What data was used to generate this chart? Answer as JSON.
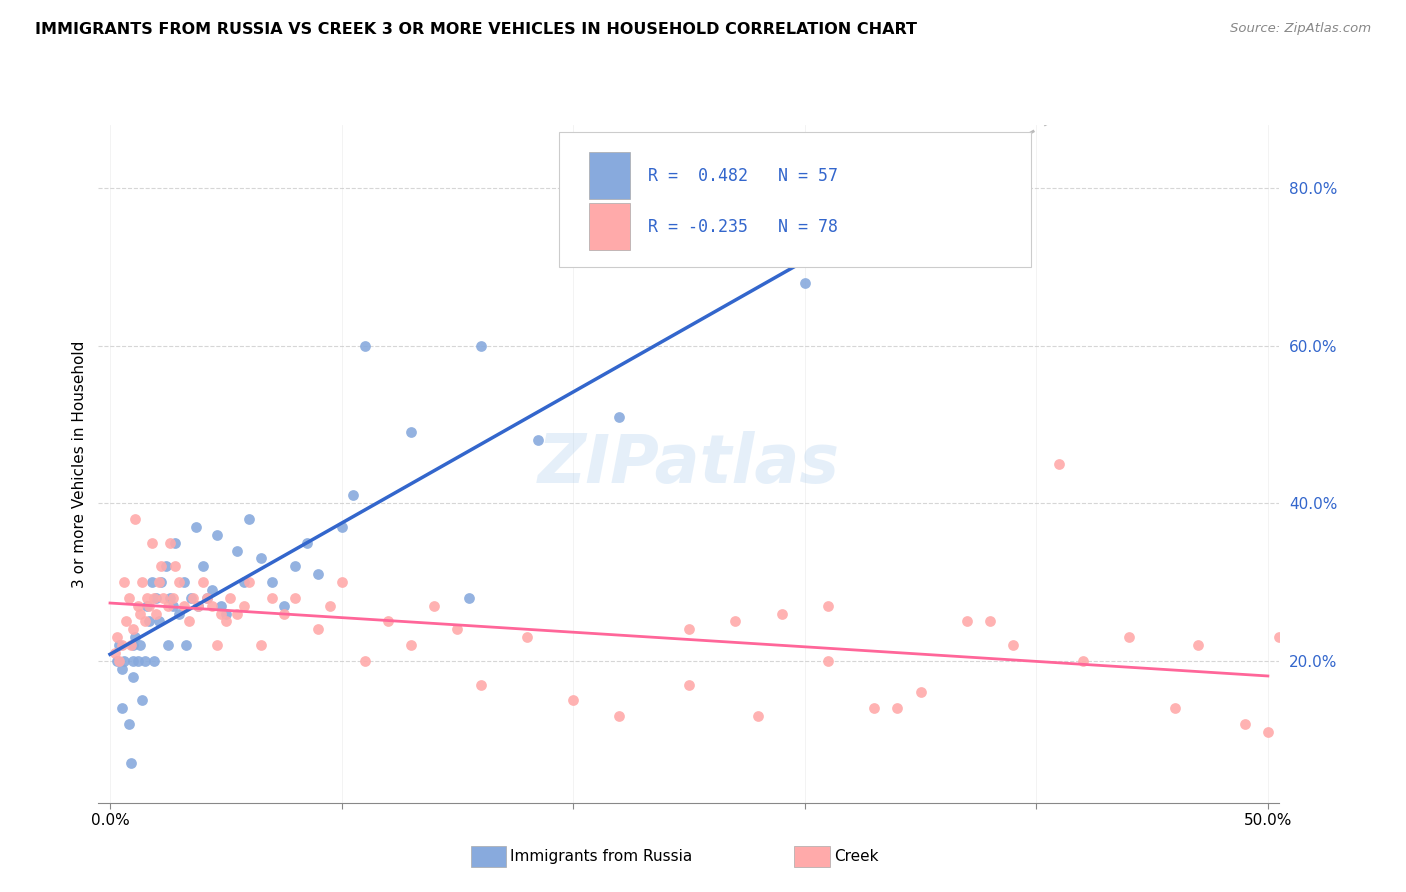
{
  "title": "IMMIGRANTS FROM RUSSIA VS CREEK 3 OR MORE VEHICLES IN HOUSEHOLD CORRELATION CHART",
  "source": "Source: ZipAtlas.com",
  "ylabel": "3 or more Vehicles in Household",
  "yaxis_labels": [
    "20.0%",
    "40.0%",
    "60.0%",
    "80.0%"
  ],
  "yaxis_values": [
    0.2,
    0.4,
    0.6,
    0.8
  ],
  "xlim": [
    -0.005,
    0.505
  ],
  "ylim": [
    0.02,
    0.88
  ],
  "legend1_label": "R =  0.482   N = 57",
  "legend2_label": "R = -0.235   N = 78",
  "color_blue": "#88AADD",
  "color_pink": "#FFAAAA",
  "trend_blue": "#3366CC",
  "trend_pink": "#FF6699",
  "trend_dashed": "#BBBBBB",
  "watermark": "ZIPatlas",
  "blue_dots_x": [
    0.003,
    0.004,
    0.005,
    0.005,
    0.006,
    0.008,
    0.009,
    0.01,
    0.01,
    0.01,
    0.011,
    0.012,
    0.013,
    0.014,
    0.015,
    0.016,
    0.017,
    0.018,
    0.019,
    0.02,
    0.021,
    0.022,
    0.024,
    0.025,
    0.026,
    0.027,
    0.028,
    0.03,
    0.032,
    0.033,
    0.035,
    0.037,
    0.038,
    0.04,
    0.042,
    0.044,
    0.046,
    0.048,
    0.05,
    0.055,
    0.058,
    0.06,
    0.065,
    0.07,
    0.075,
    0.08,
    0.085,
    0.09,
    0.1,
    0.105,
    0.11,
    0.13,
    0.155,
    0.16,
    0.185,
    0.22,
    0.3
  ],
  "blue_dots_y": [
    0.2,
    0.22,
    0.19,
    0.14,
    0.2,
    0.12,
    0.07,
    0.22,
    0.2,
    0.18,
    0.23,
    0.2,
    0.22,
    0.15,
    0.2,
    0.27,
    0.25,
    0.3,
    0.2,
    0.28,
    0.25,
    0.3,
    0.32,
    0.22,
    0.28,
    0.27,
    0.35,
    0.26,
    0.3,
    0.22,
    0.28,
    0.37,
    0.27,
    0.32,
    0.28,
    0.29,
    0.36,
    0.27,
    0.26,
    0.34,
    0.3,
    0.38,
    0.33,
    0.3,
    0.27,
    0.32,
    0.35,
    0.31,
    0.37,
    0.41,
    0.6,
    0.49,
    0.28,
    0.6,
    0.48,
    0.51,
    0.68
  ],
  "pink_dots_x": [
    0.002,
    0.003,
    0.004,
    0.005,
    0.006,
    0.007,
    0.008,
    0.009,
    0.01,
    0.011,
    0.012,
    0.013,
    0.014,
    0.015,
    0.016,
    0.017,
    0.018,
    0.019,
    0.02,
    0.021,
    0.022,
    0.023,
    0.025,
    0.026,
    0.027,
    0.028,
    0.03,
    0.032,
    0.034,
    0.036,
    0.038,
    0.04,
    0.042,
    0.044,
    0.046,
    0.048,
    0.05,
    0.052,
    0.055,
    0.058,
    0.06,
    0.065,
    0.07,
    0.075,
    0.08,
    0.09,
    0.095,
    0.1,
    0.11,
    0.12,
    0.13,
    0.14,
    0.15,
    0.16,
    0.18,
    0.2,
    0.22,
    0.25,
    0.28,
    0.31,
    0.34,
    0.37,
    0.39,
    0.41,
    0.44,
    0.46,
    0.47,
    0.49,
    0.5,
    0.505,
    0.38,
    0.42,
    0.35,
    0.33,
    0.25,
    0.27,
    0.29,
    0.31
  ],
  "pink_dots_y": [
    0.21,
    0.23,
    0.2,
    0.22,
    0.3,
    0.25,
    0.28,
    0.22,
    0.24,
    0.38,
    0.27,
    0.26,
    0.3,
    0.25,
    0.28,
    0.27,
    0.35,
    0.28,
    0.26,
    0.3,
    0.32,
    0.28,
    0.27,
    0.35,
    0.28,
    0.32,
    0.3,
    0.27,
    0.25,
    0.28,
    0.27,
    0.3,
    0.28,
    0.27,
    0.22,
    0.26,
    0.25,
    0.28,
    0.26,
    0.27,
    0.3,
    0.22,
    0.28,
    0.26,
    0.28,
    0.24,
    0.27,
    0.3,
    0.2,
    0.25,
    0.22,
    0.27,
    0.24,
    0.17,
    0.23,
    0.15,
    0.13,
    0.24,
    0.13,
    0.27,
    0.14,
    0.25,
    0.22,
    0.45,
    0.23,
    0.14,
    0.22,
    0.12,
    0.11,
    0.23,
    0.25,
    0.2,
    0.16,
    0.14,
    0.17,
    0.25,
    0.26,
    0.2
  ]
}
